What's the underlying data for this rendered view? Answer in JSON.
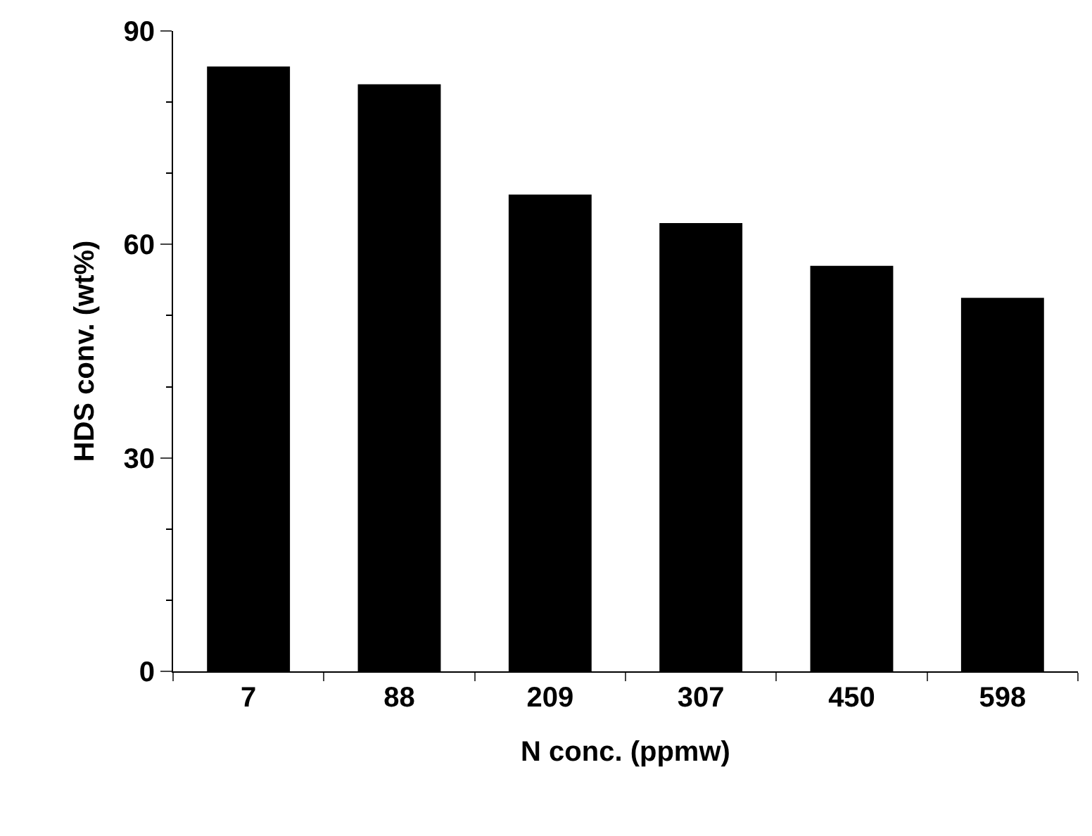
{
  "chart_data": {
    "type": "bar",
    "xlabel": "N conc. (ppmw)",
    "ylabel": "HDS conv. (wt%)",
    "categories": [
      "7",
      "88",
      "209",
      "307",
      "450",
      "598"
    ],
    "values": [
      85,
      82.5,
      67,
      63,
      57,
      52.5
    ],
    "color": "#000000",
    "ylim": [
      0,
      90
    ],
    "yticks": [
      0,
      30,
      60,
      90
    ]
  }
}
